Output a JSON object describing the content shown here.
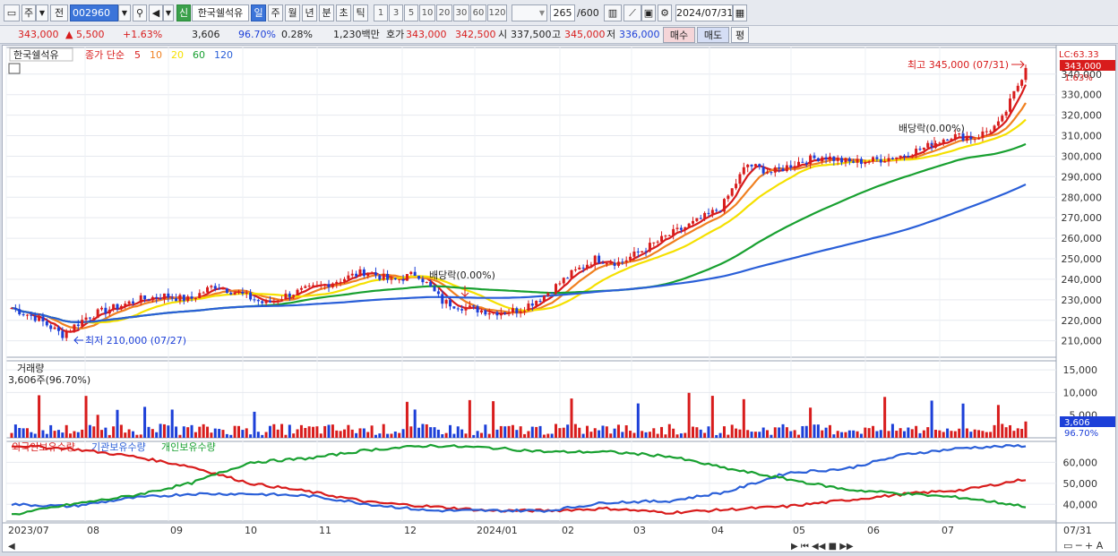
{
  "toolbar": {
    "type_label": "주",
    "prev_label": "전",
    "code": "002960",
    "market_badge": "신",
    "name": "한국쉘석유",
    "periods": [
      "일",
      "주",
      "월",
      "년",
      "분",
      "초",
      "틱"
    ],
    "period_selected": "일",
    "minute_options": [
      "1",
      "3",
      "5",
      "10",
      "20",
      "30",
      "60",
      "120"
    ],
    "count": "265",
    "count_max": "/600",
    "date": "2024/07/31"
  },
  "quote": {
    "price": "343,000",
    "change": "▲ 5,500",
    "change_pct": "+1.63%",
    "volume": "3,606",
    "volume_ratio": "96.70%",
    "turnover": "0.28%",
    "amount": "1,230백만",
    "ask_label": "호가",
    "ask": "343,000",
    "bid": "342,500",
    "open_label": "시",
    "open": "337,500",
    "high_label": "고",
    "high": "345,000",
    "low_label": "저",
    "low": "336,000",
    "buy": "매수",
    "sell": "매도",
    "avg": "평"
  },
  "chart_data": [
    {
      "type": "candlestick",
      "name": "한국쉘석유",
      "legend": {
        "title": "종가 단순",
        "periods": [
          {
            "label": "5",
            "color": "#d81c1c"
          },
          {
            "label": "10",
            "color": "#f08020"
          },
          {
            "label": "20",
            "color": "#f5e000"
          },
          {
            "label": "60",
            "color": "#18a030"
          },
          {
            "label": "120",
            "color": "#2a5fd8"
          }
        ]
      },
      "y_ticks": [
        "210,000",
        "220,000",
        "230,000",
        "240,000",
        "250,000",
        "260,000",
        "270,000",
        "280,000",
        "290,000",
        "300,000",
        "310,000",
        "320,000",
        "330,000",
        "340,000"
      ],
      "ylim": [
        202000,
        353000
      ],
      "x_ticks": [
        "2023/07",
        "08",
        "09",
        "10",
        "11",
        "12",
        "2024/01",
        "02",
        "03",
        "04",
        "05",
        "06",
        "07"
      ],
      "x_last": "07/31",
      "last_price": "343,000",
      "last_change_pct": "1.63%",
      "lc_label": "LC:63.33",
      "annotations": [
        "최고 345,000 (07/31)",
        "최저 210,000 (07/27)",
        "배당락(0.00%)",
        "배당락(0.00%)"
      ],
      "close_points": [
        226000,
        221000,
        213000,
        222000,
        226000,
        230000,
        232000,
        230000,
        237000,
        233000,
        228000,
        233000,
        236000,
        240000,
        244000,
        239000,
        243000,
        229000,
        226000,
        224000,
        225000,
        232000,
        242000,
        250000,
        248000,
        255000,
        262000,
        268000,
        275000,
        296000,
        292000,
        297000,
        300000,
        297000,
        298000,
        300000,
        304000,
        310000,
        309000,
        316000,
        343000
      ]
    },
    {
      "type": "bar",
      "name": "거래량",
      "label": "3,606주(96.70%)",
      "y_ticks": [
        "5,000",
        "10,000",
        "15,000"
      ],
      "ylim": [
        0,
        17000
      ],
      "last": "3,606",
      "last_ratio": "96.70%"
    },
    {
      "type": "line",
      "series": [
        {
          "name": "외국인보유수량",
          "color": "#d81c1c",
          "values": [
            68000,
            66500,
            63000,
            58000,
            50000,
            46000,
            41000,
            39000,
            37000,
            37000,
            38000,
            36000,
            37500,
            39000,
            42000,
            45000,
            47000,
            52000
          ]
        },
        {
          "name": "기관보유수량",
          "color": "#2a5fd8",
          "values": [
            40000,
            39000,
            43000,
            45000,
            45000,
            44000,
            40000,
            37000,
            37000,
            37000,
            41000,
            41500,
            46000,
            55000,
            57000,
            64000,
            67000,
            68000
          ]
        },
        {
          "name": "개인보유수량",
          "color": "#18a030",
          "values": [
            35000,
            40000,
            44000,
            50000,
            60000,
            62000,
            66000,
            68000,
            67000,
            65000,
            65000,
            63000,
            57000,
            52000,
            47000,
            45000,
            43000,
            39000
          ]
        }
      ],
      "y_ticks": [
        "40,000",
        "50,000",
        "60,000"
      ],
      "ylim": [
        32000,
        70000
      ]
    }
  ]
}
